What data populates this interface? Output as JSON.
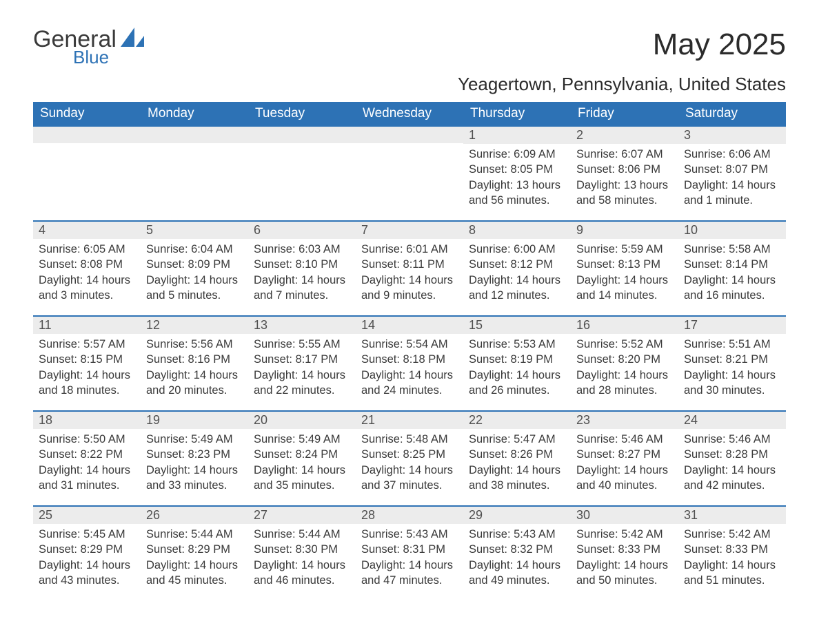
{
  "brand": {
    "name": "General",
    "sub": "Blue",
    "accent": "#2d72b5"
  },
  "title": "May 2025",
  "location": "Yeagertown, Pennsylvania, United States",
  "daysOfWeek": [
    "Sunday",
    "Monday",
    "Tuesday",
    "Wednesday",
    "Thursday",
    "Friday",
    "Saturday"
  ],
  "labels": {
    "sunrise": "Sunrise: ",
    "sunset": "Sunset: ",
    "daylight": "Daylight: "
  },
  "colors": {
    "header_bg": "#2d72b5",
    "header_text": "#ffffff",
    "dayrow_bg": "#ececec",
    "dayrow_border": "#2d72b5",
    "text": "#3a3a3a",
    "background": "#ffffff"
  },
  "typography": {
    "title_fontsize": 44,
    "location_fontsize": 26,
    "dayheader_fontsize": 19,
    "daynum_fontsize": 18,
    "body_fontsize": 16.5
  },
  "grid": {
    "columns": 7,
    "rows": 5,
    "leading_blanks": 4
  },
  "days": [
    {
      "n": "1",
      "sunrise": "6:09 AM",
      "sunset": "8:05 PM",
      "daylight": "13 hours and 56 minutes."
    },
    {
      "n": "2",
      "sunrise": "6:07 AM",
      "sunset": "8:06 PM",
      "daylight": "13 hours and 58 minutes."
    },
    {
      "n": "3",
      "sunrise": "6:06 AM",
      "sunset": "8:07 PM",
      "daylight": "14 hours and 1 minute."
    },
    {
      "n": "4",
      "sunrise": "6:05 AM",
      "sunset": "8:08 PM",
      "daylight": "14 hours and 3 minutes."
    },
    {
      "n": "5",
      "sunrise": "6:04 AM",
      "sunset": "8:09 PM",
      "daylight": "14 hours and 5 minutes."
    },
    {
      "n": "6",
      "sunrise": "6:03 AM",
      "sunset": "8:10 PM",
      "daylight": "14 hours and 7 minutes."
    },
    {
      "n": "7",
      "sunrise": "6:01 AM",
      "sunset": "8:11 PM",
      "daylight": "14 hours and 9 minutes."
    },
    {
      "n": "8",
      "sunrise": "6:00 AM",
      "sunset": "8:12 PM",
      "daylight": "14 hours and 12 minutes."
    },
    {
      "n": "9",
      "sunrise": "5:59 AM",
      "sunset": "8:13 PM",
      "daylight": "14 hours and 14 minutes."
    },
    {
      "n": "10",
      "sunrise": "5:58 AM",
      "sunset": "8:14 PM",
      "daylight": "14 hours and 16 minutes."
    },
    {
      "n": "11",
      "sunrise": "5:57 AM",
      "sunset": "8:15 PM",
      "daylight": "14 hours and 18 minutes."
    },
    {
      "n": "12",
      "sunrise": "5:56 AM",
      "sunset": "8:16 PM",
      "daylight": "14 hours and 20 minutes."
    },
    {
      "n": "13",
      "sunrise": "5:55 AM",
      "sunset": "8:17 PM",
      "daylight": "14 hours and 22 minutes."
    },
    {
      "n": "14",
      "sunrise": "5:54 AM",
      "sunset": "8:18 PM",
      "daylight": "14 hours and 24 minutes."
    },
    {
      "n": "15",
      "sunrise": "5:53 AM",
      "sunset": "8:19 PM",
      "daylight": "14 hours and 26 minutes."
    },
    {
      "n": "16",
      "sunrise": "5:52 AM",
      "sunset": "8:20 PM",
      "daylight": "14 hours and 28 minutes."
    },
    {
      "n": "17",
      "sunrise": "5:51 AM",
      "sunset": "8:21 PM",
      "daylight": "14 hours and 30 minutes."
    },
    {
      "n": "18",
      "sunrise": "5:50 AM",
      "sunset": "8:22 PM",
      "daylight": "14 hours and 31 minutes."
    },
    {
      "n": "19",
      "sunrise": "5:49 AM",
      "sunset": "8:23 PM",
      "daylight": "14 hours and 33 minutes."
    },
    {
      "n": "20",
      "sunrise": "5:49 AM",
      "sunset": "8:24 PM",
      "daylight": "14 hours and 35 minutes."
    },
    {
      "n": "21",
      "sunrise": "5:48 AM",
      "sunset": "8:25 PM",
      "daylight": "14 hours and 37 minutes."
    },
    {
      "n": "22",
      "sunrise": "5:47 AM",
      "sunset": "8:26 PM",
      "daylight": "14 hours and 38 minutes."
    },
    {
      "n": "23",
      "sunrise": "5:46 AM",
      "sunset": "8:27 PM",
      "daylight": "14 hours and 40 minutes."
    },
    {
      "n": "24",
      "sunrise": "5:46 AM",
      "sunset": "8:28 PM",
      "daylight": "14 hours and 42 minutes."
    },
    {
      "n": "25",
      "sunrise": "5:45 AM",
      "sunset": "8:29 PM",
      "daylight": "14 hours and 43 minutes."
    },
    {
      "n": "26",
      "sunrise": "5:44 AM",
      "sunset": "8:29 PM",
      "daylight": "14 hours and 45 minutes."
    },
    {
      "n": "27",
      "sunrise": "5:44 AM",
      "sunset": "8:30 PM",
      "daylight": "14 hours and 46 minutes."
    },
    {
      "n": "28",
      "sunrise": "5:43 AM",
      "sunset": "8:31 PM",
      "daylight": "14 hours and 47 minutes."
    },
    {
      "n": "29",
      "sunrise": "5:43 AM",
      "sunset": "8:32 PM",
      "daylight": "14 hours and 49 minutes."
    },
    {
      "n": "30",
      "sunrise": "5:42 AM",
      "sunset": "8:33 PM",
      "daylight": "14 hours and 50 minutes."
    },
    {
      "n": "31",
      "sunrise": "5:42 AM",
      "sunset": "8:33 PM",
      "daylight": "14 hours and 51 minutes."
    }
  ]
}
